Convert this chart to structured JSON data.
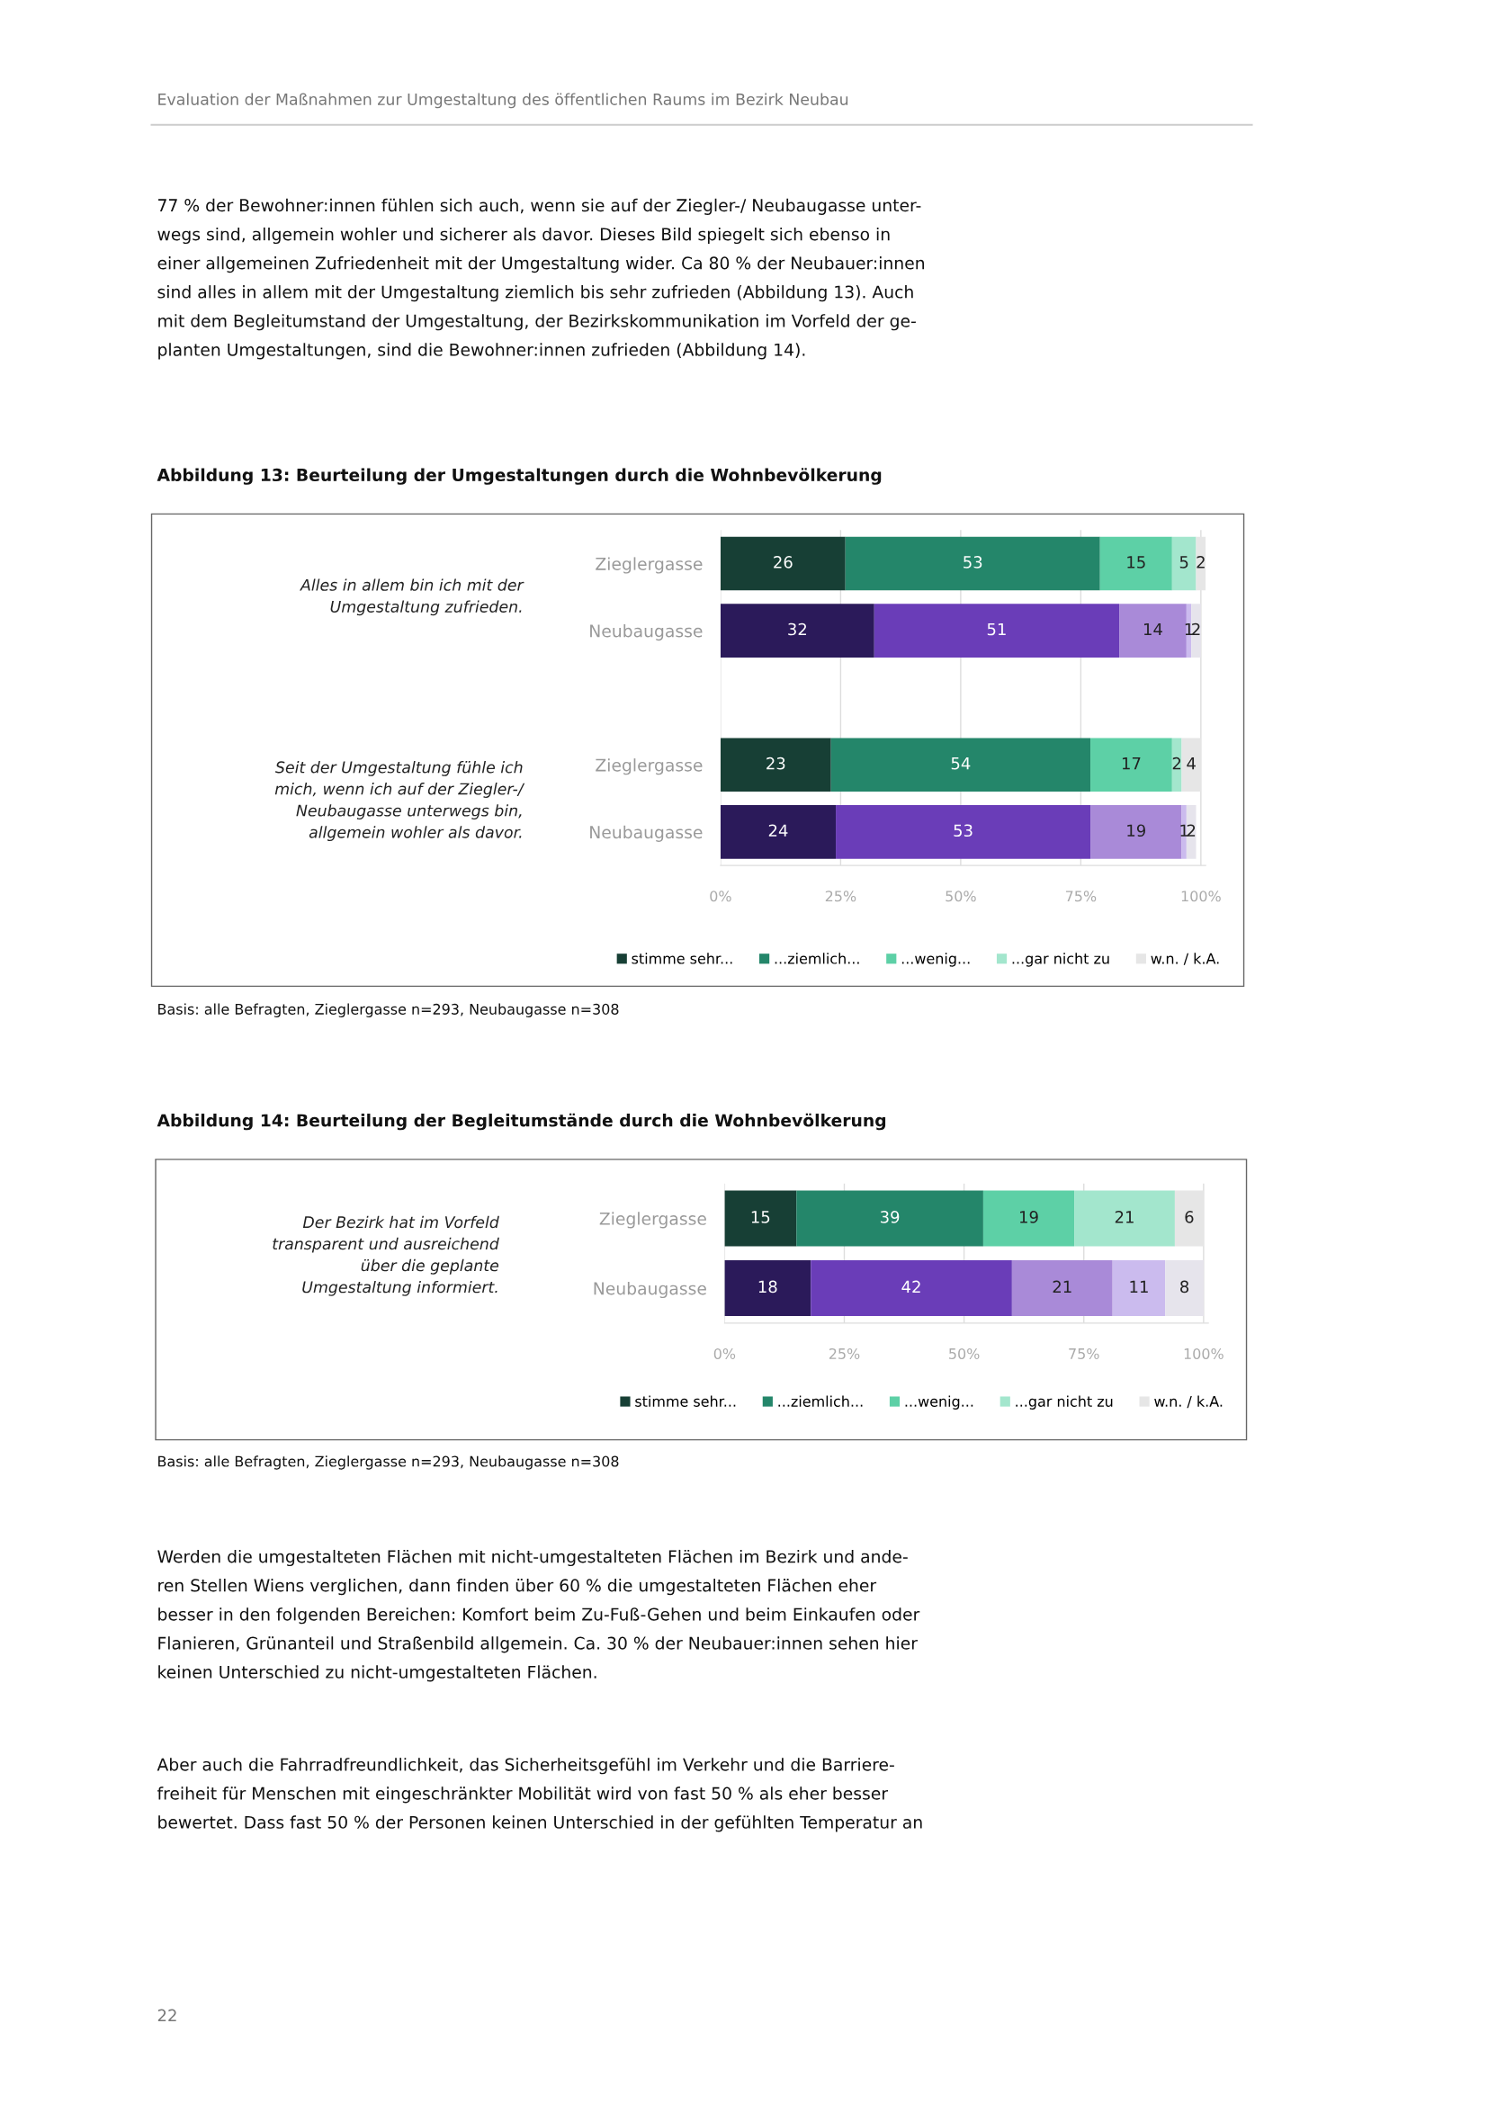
{
  "chart_data": [
    {
      "type": "bar",
      "orientation": "horizontal",
      "stacked": true,
      "title": "Abbildung 13: Beurteilung der Umgestaltungen durch die Wohnbevölkerung",
      "categories": [
        "Zieglergasse",
        "Neubaugasse",
        null,
        "Zieglergasse",
        "Neubaugasse"
      ],
      "series": [
        {
          "name": "stimme sehr...",
          "color": "#173f35",
          "colors": [
            "#173f35",
            "#2b1a5a",
            null,
            "#173f35",
            "#2b1a5a"
          ],
          "values": [
            26,
            32,
            null,
            23,
            24
          ]
        },
        {
          "name": "...ziemlich...",
          "color": "#24866a",
          "colors": [
            "#24866a",
            "#6a3db8",
            null,
            "#24866a",
            "#6a3db8"
          ],
          "values": [
            53,
            51,
            null,
            54,
            53
          ]
        },
        {
          "name": "...wenig...",
          "color": "#5dd0a6",
          "colors": [
            "#5dd0a6",
            "#a98ad8",
            null,
            "#5dd0a6",
            "#a98ad8"
          ],
          "values": [
            15,
            14,
            null,
            17,
            19
          ]
        },
        {
          "name": "...gar nicht zu",
          "color": "#a3e6cd",
          "colors": [
            "#a3e6cd",
            "#cbbbee",
            null,
            "#a3e6cd",
            "#cbbbee"
          ],
          "values": [
            5,
            1,
            null,
            2,
            1
          ]
        },
        {
          "name": "w.n. / k.A.",
          "color": "#e6e6e6",
          "colors": [
            "#e6e6e6",
            "#e6e4ec",
            null,
            "#e6e6e6",
            "#e6e4ec"
          ],
          "values": [
            2,
            2,
            null,
            4,
            2
          ]
        }
      ],
      "xlim": [
        0,
        101
      ],
      "xticks": [
        {
          "value": 0,
          "label": "0%"
        },
        {
          "value": 25,
          "label": "25%"
        },
        {
          "value": 50,
          "label": "50%"
        },
        {
          "value": 75,
          "label": "75%"
        },
        {
          "value": 100,
          "label": "100%"
        }
      ],
      "grid": "x",
      "legend": "bottom",
      "data_labels": true,
      "annotations": [
        "Evaluation der Maßnahmen zur Umgestaltung des öffentlichen Raums im Bezirk Neubau",
        "77 % der Bewohner:innen fühlen sich auch, wenn sie auf der Ziegler-/ Neubaugasse unter-\nwegs sind, allgemein wohler und sicherer als davor. Dieses Bild spiegelt sich ebenso in\neiner allgemeinen Zufriedenheit mit der Umgestaltung wider. Ca 80 % der Neubauer:innen\nsind alles in allem mit der Umgestaltung ziemlich bis sehr zufrieden (Abbildung 13). Auch\nmit dem Begleitumstand der Umgestaltung, der Bezirkskommunikation im Vorfeld der ge-\nplanten Umgestaltungen, sind die Bewohner:innen zufrieden (Abbildung 14).",
        "Alles in allem bin ich mit der\nUmgestaltung zufrieden.",
        "Seit der Umgestaltung fühle ich\nmich, wenn ich auf der Ziegler-/\nNeubaugasse unterwegs bin,\nallgemein wohler als davor.",
        "Basis: alle Befragten, Zieglergasse n=293, Neubaugasse n=308"
      ]
    },
    {
      "type": "bar",
      "orientation": "horizontal",
      "stacked": true,
      "title": "Abbildung 14: Beurteilung der Begleitumstände durch die Wohnbevölkerung",
      "categories": [
        "Zieglergasse",
        "Neubaugasse"
      ],
      "series": [
        {
          "name": "stimme sehr...",
          "color": "#173f35",
          "colors": [
            "#173f35",
            "#2b1a5a"
          ],
          "values": [
            15,
            18
          ]
        },
        {
          "name": "...ziemlich...",
          "color": "#24866a",
          "colors": [
            "#24866a",
            "#6a3db8"
          ],
          "values": [
            39,
            42
          ]
        },
        {
          "name": "...wenig...",
          "color": "#5dd0a6",
          "colors": [
            "#5dd0a6",
            "#a98ad8"
          ],
          "values": [
            19,
            21
          ]
        },
        {
          "name": "...gar nicht zu",
          "color": "#a3e6cd",
          "colors": [
            "#a3e6cd",
            "#cbbbee"
          ],
          "values": [
            21,
            11
          ]
        },
        {
          "name": "w.n. / k.A.",
          "color": "#e6e6e6",
          "colors": [
            "#e6e6e6",
            "#e6e4ec"
          ],
          "values": [
            6,
            8
          ]
        }
      ],
      "xlim": [
        0,
        101
      ],
      "xticks": [
        {
          "value": 0,
          "label": "0%"
        },
        {
          "value": 25,
          "label": "25%"
        },
        {
          "value": 50,
          "label": "50%"
        },
        {
          "value": 75,
          "label": "75%"
        },
        {
          "value": 100,
          "label": "100%"
        }
      ],
      "grid": "x",
      "legend": "bottom",
      "data_labels": true,
      "annotations": [
        "Der Bezirk hat im Vorfeld\ntransparent und ausreichend\nüber die geplante\nUmgestaltung informiert.",
        "Basis: alle Befragten, Zieglergasse n=293, Neubaugasse n=308",
        "Werden die umgestalteten Flächen mit nicht-umgestalteten Flächen im Bezirk und ande-\nren Stellen Wiens verglichen, dann finden über 60 % die umgestalteten Flächen eher\nbesser in den folgenden Bereichen: Komfort beim Zu-Fuß-Gehen und beim Einkaufen oder\nFlanieren, Grünanteil und Straßenbild allgemein. Ca. 30 % der Neubauer:innen sehen hier\nkeinen Unterschied zu nicht-umgestalteten Flächen.",
        "Aber auch die Fahrradfreundlichkeit, das Sicherheitsgefühl im Verkehr und die Barriere-\nfreiheit für Menschen mit eingeschränkter Mobilität wird von fast 50 % als eher besser\nbewertet. Dass fast 50 % der Personen keinen Unterschied in der gefühlten Temperatur an",
        "22"
      ]
    }
  ]
}
